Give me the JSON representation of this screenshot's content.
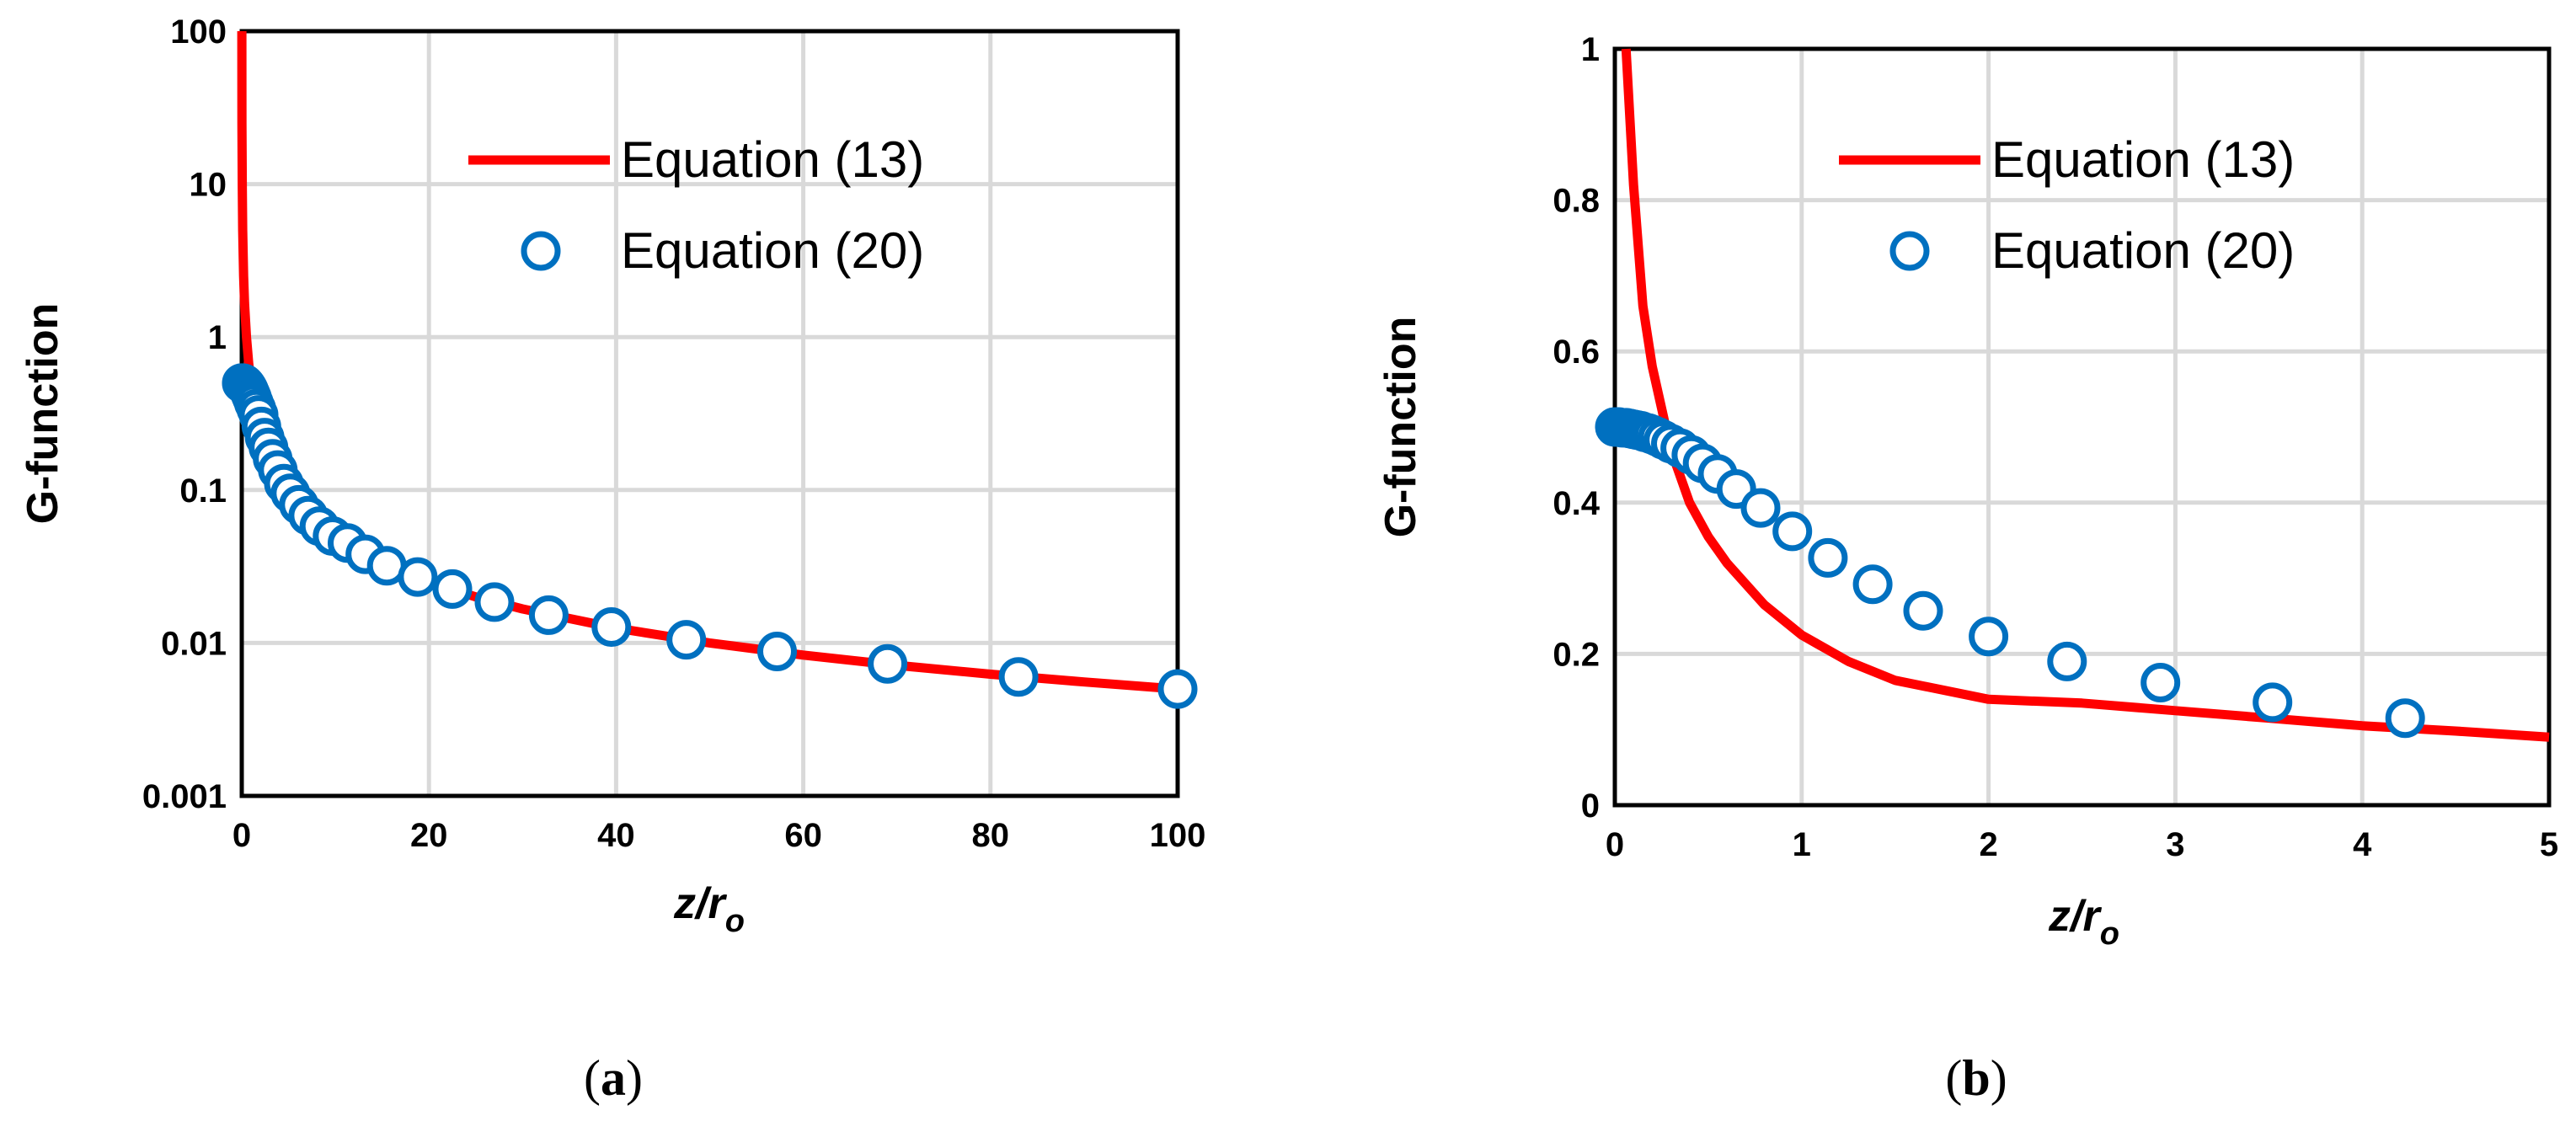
{
  "chart_data": [
    {
      "id": "a",
      "type": "line",
      "panel_label": "a",
      "xlabel": "z/r",
      "xlabel_subscript": "o",
      "ylabel": "G-function",
      "xlim": [
        0,
        100
      ],
      "ylim": [
        0.001,
        100
      ],
      "yscale": "log",
      "xticks": [
        "0",
        "20",
        "40",
        "60",
        "80",
        "100"
      ],
      "yticks": [
        "0.001",
        "0.01",
        "0.1",
        "1",
        "10",
        "100"
      ],
      "legend_position": "top-right",
      "series": [
        {
          "name": "Equation (13)",
          "style": "line",
          "color": "#ff0000",
          "x": [
            0.005,
            0.02,
            0.05,
            0.1,
            0.2,
            0.3,
            0.5,
            0.75,
            1,
            1.5,
            2,
            3,
            4,
            5,
            6,
            8,
            10,
            12,
            15,
            20,
            25,
            30,
            40,
            50,
            60,
            70,
            80,
            90,
            100
          ],
          "y": [
            100,
            25,
            10,
            5,
            2.5,
            1.667,
            1,
            0.667,
            0.5,
            0.333,
            0.25,
            0.167,
            0.125,
            0.1,
            0.0833,
            0.0625,
            0.05,
            0.0417,
            0.0333,
            0.025,
            0.02,
            0.0167,
            0.0125,
            0.01,
            0.00833,
            0.00714,
            0.00625,
            0.00556,
            0.005
          ]
        },
        {
          "name": "Equation (20)",
          "style": "markers",
          "color": "#0070c0",
          "x": [
            0,
            0.1,
            0.2,
            0.3,
            0.4,
            0.5,
            0.6,
            0.7,
            0.8,
            0.95,
            1.1,
            1.3,
            1.55,
            1.8,
            2.1,
            2.45,
            2.85,
            3.3,
            3.85,
            4.5,
            5.2,
            6.1,
            7.1,
            8.3,
            9.7,
            11.3,
            13.2,
            15.5,
            18.8,
            22.5,
            27,
            32.8,
            39.5,
            47.5,
            57.2,
            69,
            83,
            100
          ],
          "y": [
            0.5,
            0.499,
            0.497,
            0.493,
            0.486,
            0.477,
            0.466,
            0.455,
            0.442,
            0.42,
            0.4,
            0.37,
            0.34,
            0.31,
            0.26,
            0.22,
            0.19,
            0.16,
            0.135,
            0.11,
            0.095,
            0.08,
            0.068,
            0.058,
            0.05,
            0.045,
            0.038,
            0.032,
            0.027,
            0.0225,
            0.0185,
            0.0152,
            0.0127,
            0.0105,
            0.0088,
            0.0073,
            0.006,
            0.005
          ]
        }
      ]
    },
    {
      "id": "b",
      "type": "line",
      "panel_label": "b",
      "xlabel": "z/r",
      "xlabel_subscript": "o",
      "ylabel": "G-function",
      "xlim": [
        0,
        5
      ],
      "ylim": [
        0,
        1
      ],
      "yscale": "linear",
      "xticks": [
        "0",
        "1",
        "2",
        "3",
        "4",
        "5"
      ],
      "yticks": [
        "0",
        "0.2",
        "0.4",
        "0.6",
        "0.8",
        "1"
      ],
      "legend_position": "top-right",
      "series": [
        {
          "name": "Equation (13)",
          "style": "line",
          "color": "#ff0000",
          "x": [
            0.06,
            0.1,
            0.15,
            0.2,
            0.3,
            0.4,
            0.5,
            0.6,
            0.8,
            1,
            1.25,
            1.5,
            2,
            2.5,
            3,
            3.5,
            4,
            4.5,
            5
          ],
          "y": [
            1.0,
            0.82,
            0.66,
            0.58,
            0.47,
            0.4,
            0.355,
            0.32,
            0.265,
            0.225,
            0.19,
            0.165,
            0.14,
            0.135,
            0.125,
            0.115,
            0.105,
            0.098,
            0.09
          ]
        },
        {
          "name": "Equation (20)",
          "style": "markers",
          "color": "#0070c0",
          "x": [
            0,
            0.02,
            0.04,
            0.06,
            0.08,
            0.1,
            0.12,
            0.14,
            0.16,
            0.18,
            0.2,
            0.23,
            0.26,
            0.3,
            0.35,
            0.41,
            0.47,
            0.55,
            0.65,
            0.78,
            0.95,
            1.14,
            1.38,
            1.65,
            2.0,
            2.42,
            2.92,
            3.52,
            4.23
          ],
          "y": [
            0.5,
            0.5,
            0.499,
            0.499,
            0.498,
            0.497,
            0.496,
            0.495,
            0.493,
            0.492,
            0.49,
            0.487,
            0.483,
            0.478,
            0.472,
            0.463,
            0.452,
            0.438,
            0.418,
            0.393,
            0.362,
            0.327,
            0.292,
            0.257,
            0.223,
            0.19,
            0.162,
            0.136,
            0.115
          ]
        }
      ]
    }
  ]
}
